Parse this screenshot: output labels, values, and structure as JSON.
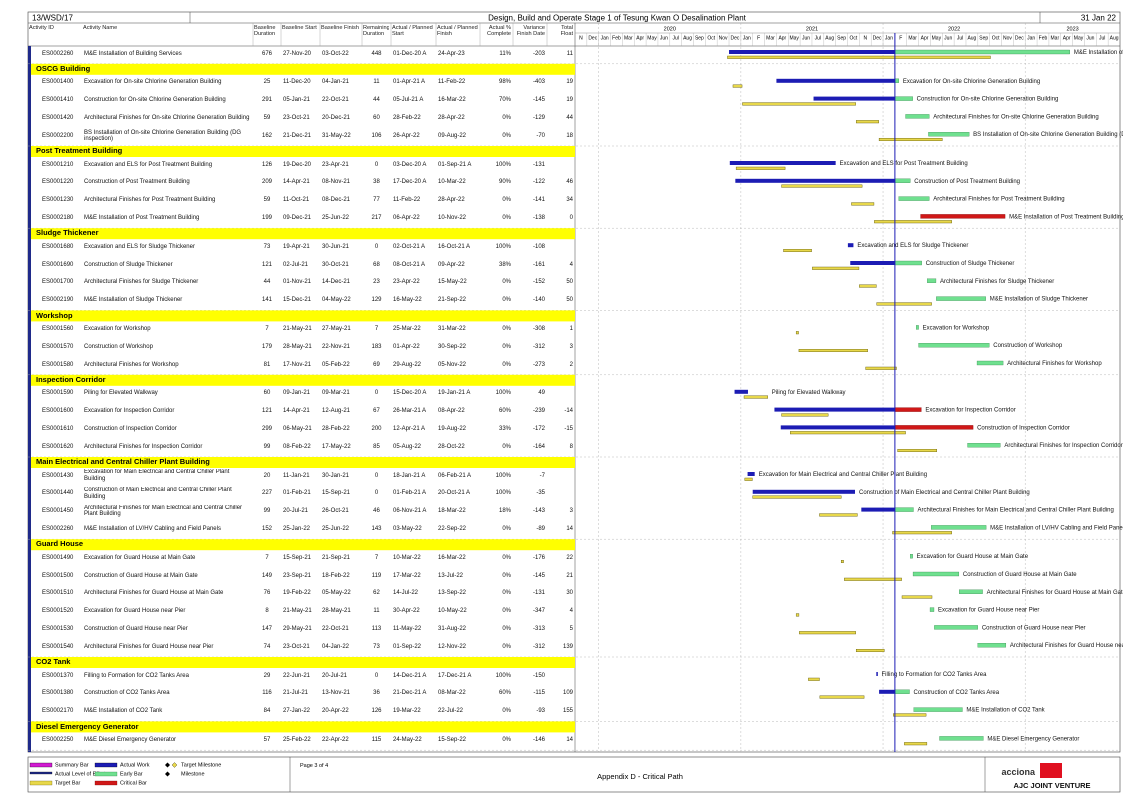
{
  "header": {
    "code": "13/WSD/17",
    "title": "Design, Build and Operate Stage 1 of Tesung Kwan O Desalination Plant",
    "date": "31 Jan 22"
  },
  "columns": [
    [
      "Activity ID"
    ],
    [
      "Activity Name"
    ],
    [
      "Baseline",
      "Duration"
    ],
    [
      "Baseline Start"
    ],
    [
      "Baseline Finish"
    ],
    [
      "Remaining",
      "Duration"
    ],
    [
      "Actual / Planned",
      "Start"
    ],
    [
      "Actual / Planned",
      "Finish"
    ],
    [
      "Actual %",
      "Complete"
    ],
    [
      "Variance",
      "Finish Date"
    ],
    [
      "Total",
      "Float"
    ]
  ],
  "timeline": {
    "years": [
      "2020",
      "2021",
      "2022",
      "2023"
    ],
    "months": [
      "N",
      "Dec",
      "Jan",
      "Feb",
      "Mar",
      "Apr",
      "May",
      "Jun",
      "Jul",
      "Aug",
      "Sep",
      "Oct",
      "Nov",
      "Dec",
      "Jan",
      "F",
      "Mar",
      "Apr",
      "May",
      "Jun",
      "Jul",
      "Aug",
      "Sep",
      "Oct",
      "N",
      "Dec",
      "Jan",
      "F",
      "Mar",
      "Apr",
      "May",
      "Jun",
      "Jul",
      "Aug",
      "Sep",
      "Oct",
      "Nov",
      "Dec",
      "Jan",
      "Feb",
      "Mar",
      "Apr",
      "May",
      "Jun",
      "Jul",
      "Aug"
    ]
  },
  "groups": [
    {
      "rows": [
        {
          "id": "ES0002260",
          "name": "M&E Installation of Building Services",
          "bl_dur": "676",
          "bl_start": "27-Nov-20",
          "bl_finish": "03-Oct-22",
          "rem": "448",
          "start": "01-Dec-20 A",
          "finish": "24-Apr-23",
          "pct": "11%",
          "variance": "-203",
          "float": "11"
        }
      ]
    },
    {
      "name": "OSCG Building",
      "rows": [
        {
          "id": "ES0001400",
          "name": "Excavation for On-site Chlorine Generation Building",
          "bl_dur": "25",
          "bl_start": "11-Dec-20",
          "bl_finish": "04-Jan-21",
          "rem": "11",
          "start": "01-Apr-21 A",
          "finish": "11-Feb-22",
          "pct": "98%",
          "variance": "-403",
          "float": "19"
        },
        {
          "id": "ES0001410",
          "name": "Construction for On-site Chlorine Generation Building",
          "bl_dur": "291",
          "bl_start": "05-Jan-21",
          "bl_finish": "22-Oct-21",
          "rem": "44",
          "start": "05-Jul-21 A",
          "finish": "16-Mar-22",
          "pct": "70%",
          "variance": "-145",
          "float": "19"
        },
        {
          "id": "ES0001420",
          "name": "Architectural Finishes for On-site Chlorine Generation Building",
          "bl_dur": "59",
          "bl_start": "23-Oct-21",
          "bl_finish": "20-Dec-21",
          "rem": "60",
          "start": "28-Feb-22",
          "finish": "28-Apr-22",
          "pct": "0%",
          "variance": "-129",
          "float": "44"
        },
        {
          "id": "ES0002200",
          "name": "BS Installation of On-site Chlorine Generation Building (DG inspection)",
          "bl_dur": "162",
          "bl_start": "21-Dec-21",
          "bl_finish": "31-May-22",
          "rem": "106",
          "start": "26-Apr-22",
          "finish": "09-Aug-22",
          "pct": "0%",
          "variance": "-70",
          "float": "18"
        }
      ]
    },
    {
      "name": "Post Treatment Building",
      "rows": [
        {
          "id": "ES0001210",
          "name": "Excavation and ELS for Post Treatment Building",
          "bl_dur": "126",
          "bl_start": "19-Dec-20",
          "bl_finish": "23-Apr-21",
          "rem": "0",
          "start": "03-Dec-20 A",
          "finish": "01-Sep-21 A",
          "pct": "100%",
          "variance": "-131"
        },
        {
          "id": "ES0001220",
          "name": "Construction of Post Treatment Building",
          "bl_dur": "209",
          "bl_start": "14-Apr-21",
          "bl_finish": "08-Nov-21",
          "rem": "38",
          "start": "17-Dec-20 A",
          "finish": "10-Mar-22",
          "pct": "90%",
          "variance": "-122",
          "float": "46"
        },
        {
          "id": "ES0001230",
          "name": "Architectural Finishes for Post Treatment Building",
          "bl_dur": "59",
          "bl_start": "11-Oct-21",
          "bl_finish": "08-Dec-21",
          "rem": "77",
          "start": "11-Feb-22",
          "finish": "28-Apr-22",
          "pct": "0%",
          "variance": "-141",
          "float": "34"
        },
        {
          "id": "ES0002180",
          "name": "M&E Installation of Post Treatment Building",
          "bl_dur": "199",
          "bl_start": "09-Dec-21",
          "bl_finish": "25-Jun-22",
          "rem": "217",
          "start": "06-Apr-22",
          "finish": "10-Nov-22",
          "pct": "0%",
          "variance": "-138",
          "float": "0"
        }
      ]
    },
    {
      "name": "Sludge Thickener",
      "rows": [
        {
          "id": "ES0001680",
          "name": "Excavation and ELS for Sludge Thickener",
          "bl_dur": "73",
          "bl_start": "19-Apr-21",
          "bl_finish": "30-Jun-21",
          "rem": "0",
          "start": "02-Oct-21 A",
          "finish": "16-Oct-21 A",
          "pct": "100%",
          "variance": "-108"
        },
        {
          "id": "ES0001690",
          "name": "Construction of Sludge Thickener",
          "bl_dur": "121",
          "bl_start": "02-Jul-21",
          "bl_finish": "30-Oct-21",
          "rem": "68",
          "start": "08-Oct-21 A",
          "finish": "09-Apr-22",
          "pct": "38%",
          "variance": "-161",
          "float": "4"
        },
        {
          "id": "ES0001700",
          "name": "Architectural Finishes for Sludge Thickener",
          "bl_dur": "44",
          "bl_start": "01-Nov-21",
          "bl_finish": "14-Dec-21",
          "rem": "23",
          "start": "23-Apr-22",
          "finish": "15-May-22",
          "pct": "0%",
          "variance": "-152",
          "float": "50"
        },
        {
          "id": "ES0002190",
          "name": "M&E Installation of Sludge Thickener",
          "bl_dur": "141",
          "bl_start": "15-Dec-21",
          "bl_finish": "04-May-22",
          "rem": "129",
          "start": "16-May-22",
          "finish": "21-Sep-22",
          "pct": "0%",
          "variance": "-140",
          "float": "50"
        }
      ]
    },
    {
      "name": "Workshop",
      "rows": [
        {
          "id": "ES0001560",
          "name": "Excavation for Workshop",
          "bl_dur": "7",
          "bl_start": "21-May-21",
          "bl_finish": "27-May-21",
          "rem": "7",
          "start": "25-Mar-22",
          "finish": "31-Mar-22",
          "pct": "0%",
          "variance": "-308",
          "float": "1"
        },
        {
          "id": "ES0001570",
          "name": "Construction of Workshop",
          "bl_dur": "179",
          "bl_start": "28-May-21",
          "bl_finish": "22-Nov-21",
          "rem": "183",
          "start": "01-Apr-22",
          "finish": "30-Sep-22",
          "pct": "0%",
          "variance": "-312",
          "float": "3"
        },
        {
          "id": "ES0001580",
          "name": "Architectural Finishes for Workshop",
          "bl_dur": "81",
          "bl_start": "17-Nov-21",
          "bl_finish": "05-Feb-22",
          "rem": "69",
          "start": "29-Aug-22",
          "finish": "05-Nov-22",
          "pct": "0%",
          "variance": "-273",
          "float": "2"
        }
      ]
    },
    {
      "name": "Inspection Corridor",
      "rows": [
        {
          "id": "ES0001590",
          "name": "Piling for Elevated Walkway",
          "bl_dur": "60",
          "bl_start": "09-Jan-21",
          "bl_finish": "09-Mar-21",
          "rem": "0",
          "start": "15-Dec-20 A",
          "finish": "19-Jan-21 A",
          "pct": "100%",
          "variance": "49"
        },
        {
          "id": "ES0001600",
          "name": "Excavation for Inspection Corridor",
          "bl_dur": "121",
          "bl_start": "14-Apr-21",
          "bl_finish": "12-Aug-21",
          "rem": "67",
          "start": "26-Mar-21 A",
          "finish": "08-Apr-22",
          "pct": "60%",
          "variance": "-239",
          "float": "-14"
        },
        {
          "id": "ES0001610",
          "name": "Construction of Inspection Corridor",
          "bl_dur": "299",
          "bl_start": "06-May-21",
          "bl_finish": "28-Feb-22",
          "rem": "200",
          "start": "12-Apr-21 A",
          "finish": "19-Aug-22",
          "pct": "33%",
          "variance": "-172",
          "float": "-15"
        },
        {
          "id": "ES0001620",
          "name": "Architectural Finishes for Inspection Corridor",
          "bl_dur": "99",
          "bl_start": "08-Feb-22",
          "bl_finish": "17-May-22",
          "rem": "85",
          "start": "05-Aug-22",
          "finish": "28-Oct-22",
          "pct": "0%",
          "variance": "-164",
          "float": "8"
        }
      ]
    },
    {
      "name": "Main Electrical and Central Chiller Plant Building",
      "rows": [
        {
          "id": "ES0001430",
          "name": "Excavation for Main Electrical and Central Chiller Plant Building",
          "bl_dur": "20",
          "bl_start": "11-Jan-21",
          "bl_finish": "30-Jan-21",
          "rem": "0",
          "start": "18-Jan-21 A",
          "finish": "06-Feb-21 A",
          "pct": "100%",
          "variance": "-7"
        },
        {
          "id": "ES0001440",
          "name": "Construction of Main Electrical and Central Chiller Plant Building",
          "bl_dur": "227",
          "bl_start": "01-Feb-21",
          "bl_finish": "15-Sep-21",
          "rem": "0",
          "start": "01-Feb-21 A",
          "finish": "20-Oct-21 A",
          "pct": "100%",
          "variance": "-35"
        },
        {
          "id": "ES0001450",
          "name": "Architectural Finishes for Main Electrical and Central Chiller Plant Building",
          "bl_dur": "99",
          "bl_start": "20-Jul-21",
          "bl_finish": "26-Oct-21",
          "rem": "46",
          "start": "06-Nov-21 A",
          "finish": "18-Mar-22",
          "pct": "18%",
          "variance": "-143",
          "float": "3"
        },
        {
          "id": "ES0002260",
          "name": "M&E Installation of LV/HV Cabling and Field Panels",
          "bl_dur": "152",
          "bl_start": "25-Jan-22",
          "bl_finish": "25-Jun-22",
          "rem": "143",
          "start": "03-May-22",
          "finish": "22-Sep-22",
          "pct": "0%",
          "variance": "-89",
          "float": "14"
        }
      ]
    },
    {
      "name": "Guard House",
      "rows": [
        {
          "id": "ES0001490",
          "name": "Excavation for Guard House at Main Gate",
          "bl_dur": "7",
          "bl_start": "15-Sep-21",
          "bl_finish": "21-Sep-21",
          "rem": "7",
          "start": "10-Mar-22",
          "finish": "16-Mar-22",
          "pct": "0%",
          "variance": "-176",
          "float": "22"
        },
        {
          "id": "ES0001500",
          "name": "Construction of Guard House at Main Gate",
          "bl_dur": "149",
          "bl_start": "23-Sep-21",
          "bl_finish": "18-Feb-22",
          "rem": "119",
          "start": "17-Mar-22",
          "finish": "13-Jul-22",
          "pct": "0%",
          "variance": "-145",
          "float": "21"
        },
        {
          "id": "ES0001510",
          "name": "Architectural Finishes for Guard House at Main Gate",
          "bl_dur": "76",
          "bl_start": "19-Feb-22",
          "bl_finish": "05-May-22",
          "rem": "62",
          "start": "14-Jul-22",
          "finish": "13-Sep-22",
          "pct": "0%",
          "variance": "-131",
          "float": "30"
        },
        {
          "id": "ES0001520",
          "name": "Excavation for Guard House near Pier",
          "bl_dur": "8",
          "bl_start": "21-May-21",
          "bl_finish": "28-May-21",
          "rem": "11",
          "start": "30-Apr-22",
          "finish": "10-May-22",
          "pct": "0%",
          "variance": "-347",
          "float": "4"
        },
        {
          "id": "ES0001530",
          "name": "Construction of Guard House near Pier",
          "bl_dur": "147",
          "bl_start": "29-May-21",
          "bl_finish": "22-Oct-21",
          "rem": "113",
          "start": "11-May-22",
          "finish": "31-Aug-22",
          "pct": "0%",
          "variance": "-313",
          "float": "5"
        },
        {
          "id": "ES0001540",
          "name": "Architectural Finishes for Guard House near Pier",
          "bl_dur": "74",
          "bl_start": "23-Oct-21",
          "bl_finish": "04-Jan-22",
          "rem": "73",
          "start": "01-Sep-22",
          "finish": "12-Nov-22",
          "pct": "0%",
          "variance": "-312",
          "float": "139"
        }
      ]
    },
    {
      "name": "CO2 Tank",
      "rows": [
        {
          "id": "ES0001370",
          "name": "Filling to Formation for CO2 Tanks Area",
          "bl_dur": "29",
          "bl_start": "22-Jun-21",
          "bl_finish": "20-Jul-21",
          "rem": "0",
          "start": "14-Dec-21 A",
          "finish": "17-Dec-21 A",
          "pct": "100%",
          "variance": "-150"
        },
        {
          "id": "ES0001380",
          "name": "Construction of CO2 Tanks Area",
          "bl_dur": "116",
          "bl_start": "21-Jul-21",
          "bl_finish": "13-Nov-21",
          "rem": "36",
          "start": "21-Dec-21 A",
          "finish": "08-Mar-22",
          "pct": "60%",
          "variance": "-115",
          "float": "109"
        },
        {
          "id": "ES0002170",
          "name": "M&E Installation of CO2 Tank",
          "bl_dur": "84",
          "bl_start": "27-Jan-22",
          "bl_finish": "20-Apr-22",
          "rem": "126",
          "start": "19-Mar-22",
          "finish": "22-Jul-22",
          "pct": "0%",
          "variance": "-93",
          "float": "155"
        }
      ]
    },
    {
      "name": "Diesel Emergency Generator",
      "rows": [
        {
          "id": "ES0002250",
          "name": "M&E Diesel Emergency Generator",
          "bl_dur": "57",
          "bl_start": "25-Feb-22",
          "bl_finish": "22-Apr-22",
          "rem": "115",
          "start": "24-May-22",
          "finish": "15-Sep-22",
          "pct": "0%",
          "variance": "-146",
          "float": "14"
        }
      ]
    }
  ],
  "footer": {
    "legend": [
      "Summary Bar",
      "Actual Level of Effort",
      "Target Bar",
      "Actual Work",
      "Early Bar",
      "Critical Bar",
      "Target Milestone",
      "Milestone"
    ],
    "page": "Page 3 of 4",
    "caption": "Appendix D - Critical Path",
    "company": "acciona",
    "joint_venture": "AJC JOINT VENTURE"
  }
}
